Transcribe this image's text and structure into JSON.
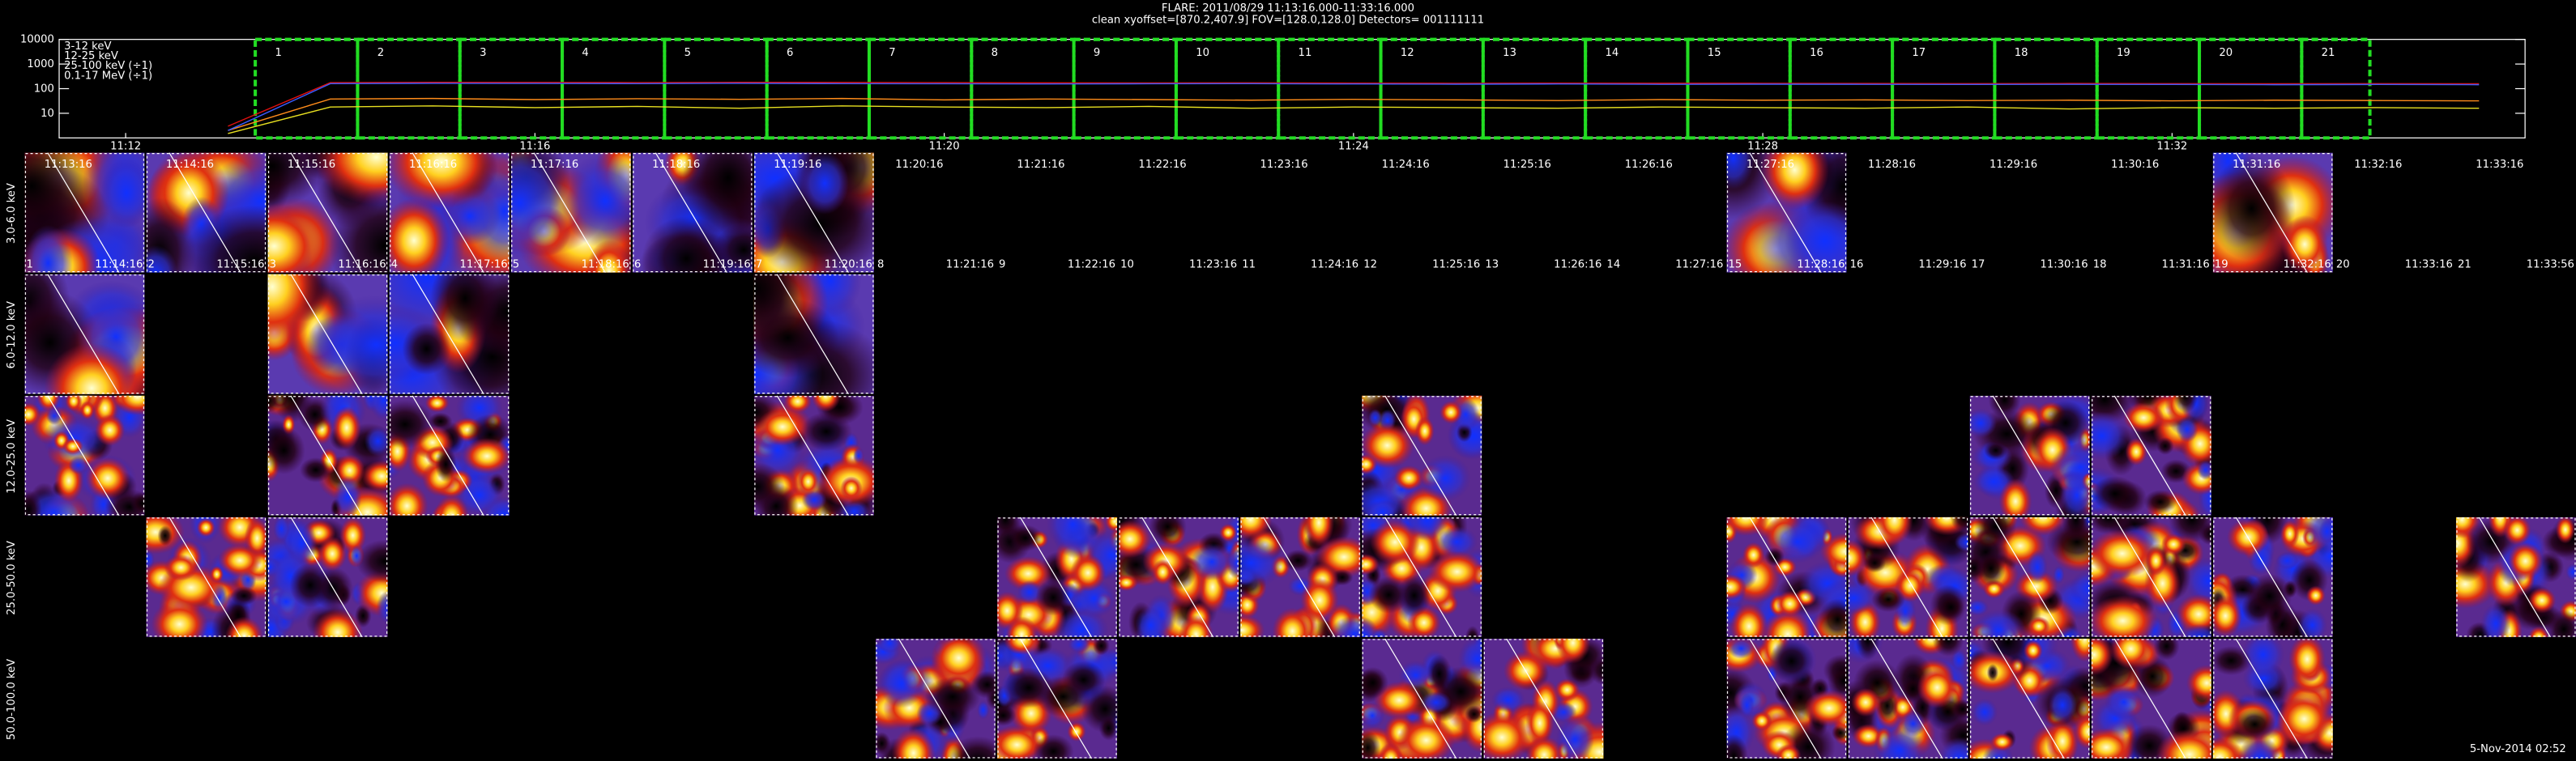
{
  "chart_data": {
    "type": "line",
    "title": "FLARE: 2011/08/29 11:13:16.000-11:33:16.000",
    "subtitle": "clean    xyoffset=[870.2,407.9]    FOV=[128.0,128.0]    Detectors= 001111111",
    "log_y": true,
    "legend": "top-left",
    "xlim": [
      "11:11:21",
      "11:35:27"
    ],
    "xticks": [
      "11:12",
      "11:16",
      "11:20",
      "11:24",
      "11:28",
      "11:32"
    ],
    "ylim": [
      1,
      10000
    ],
    "yticks": [
      10,
      100,
      1000,
      10000
    ],
    "x": [
      "11:13",
      "11:14",
      "11:15",
      "11:16",
      "11:17",
      "11:18",
      "11:19",
      "11:20",
      "11:21",
      "11:22",
      "11:23",
      "11:24",
      "11:25",
      "11:26",
      "11:27",
      "11:28",
      "11:29",
      "11:30",
      "11:31",
      "11:32",
      "11:33",
      "11:34",
      "11:35"
    ],
    "series": [
      {
        "name": "3-12 keV",
        "color": "#e01010",
        "values": [
          3,
          175,
          180,
          178,
          176,
          180,
          178,
          175,
          172,
          170,
          172,
          168,
          165,
          168,
          166,
          165,
          162,
          160,
          162,
          160,
          158,
          160,
          158
        ]
      },
      {
        "name": "12-25 keV",
        "color": "#ff8c1a",
        "values": [
          2,
          38,
          40,
          36,
          39,
          37,
          40,
          35,
          38,
          36,
          34,
          37,
          35,
          33,
          36,
          34,
          35,
          33,
          34,
          32,
          34,
          33,
          32
        ]
      },
      {
        "name": "25-100 keV (÷1)",
        "color": "#e8e020",
        "values": [
          1.5,
          18,
          20,
          17,
          19,
          16,
          20,
          18,
          17,
          19,
          16,
          18,
          17,
          16,
          18,
          17,
          16,
          18,
          15,
          17,
          16,
          17,
          16
        ]
      },
      {
        "name": "0.1-17 MeV (÷1)",
        "color": "#3a5cff",
        "values": [
          2,
          160,
          165,
          163,
          160,
          165,
          160,
          158,
          155,
          158,
          160,
          155,
          152,
          155,
          150,
          152,
          150,
          148,
          150,
          148,
          145,
          148,
          145
        ]
      }
    ],
    "intervals": [
      {
        "number": "1",
        "start": "11:13:16",
        "end": "11:14:16"
      },
      {
        "number": "2",
        "start": "11:14:16",
        "end": "11:15:16"
      },
      {
        "number": "3",
        "start": "11:15:16",
        "end": "11:16:16"
      },
      {
        "number": "4",
        "start": "11:16:16",
        "end": "11:17:16"
      },
      {
        "number": "5",
        "start": "11:17:16",
        "end": "11:18:16"
      },
      {
        "number": "6",
        "start": "11:18:16",
        "end": "11:19:16"
      },
      {
        "number": "7",
        "start": "11:19:16",
        "end": "11:20:16"
      },
      {
        "number": "8",
        "start": "11:20:16",
        "end": "11:21:16"
      },
      {
        "number": "9",
        "start": "11:21:16",
        "end": "11:22:16"
      },
      {
        "number": "10",
        "start": "11:22:16",
        "end": "11:23:16"
      },
      {
        "number": "11",
        "start": "11:23:16",
        "end": "11:24:16"
      },
      {
        "number": "12",
        "start": "11:24:16",
        "end": "11:25:16"
      },
      {
        "number": "13",
        "start": "11:25:16",
        "end": "11:26:16"
      },
      {
        "number": "14",
        "start": "11:26:16",
        "end": "11:27:16"
      },
      {
        "number": "15",
        "start": "11:27:16",
        "end": "11:28:16"
      },
      {
        "number": "16",
        "start": "11:28:16",
        "end": "11:29:16"
      },
      {
        "number": "17",
        "start": "11:29:16",
        "end": "11:30:16"
      },
      {
        "number": "18",
        "start": "11:30:16",
        "end": "11:31:16"
      },
      {
        "number": "19",
        "start": "11:31:16",
        "end": "11:32:16"
      },
      {
        "number": "20",
        "start": "11:32:16",
        "end": "11:33:16"
      },
      {
        "number": "21",
        "start": "11:33:16",
        "end": "11:33:56"
      }
    ],
    "energy_bands": [
      {
        "label": "3.0-6.0 keV",
        "images": [
          "1",
          "2",
          "3",
          "4",
          "5",
          "6",
          "7",
          "15",
          "19"
        ]
      },
      {
        "label": "6.0-12.0 keV",
        "images": [
          "1",
          "3",
          "4",
          "7"
        ]
      },
      {
        "label": "12.0-25.0 keV",
        "images": [
          "1",
          "3",
          "4",
          "7",
          "12",
          "17",
          "18"
        ]
      },
      {
        "label": "25.0-50.0 keV",
        "images": [
          "2",
          "3",
          "9",
          "10",
          "11",
          "12",
          "15",
          "16",
          "17",
          "18",
          "19",
          "21"
        ]
      },
      {
        "label": "50.0-100.0 keV",
        "images": [
          "8",
          "9",
          "12",
          "13",
          "15",
          "16",
          "17",
          "18",
          "19"
        ]
      }
    ],
    "footer": "5-Nov-2014 02:52"
  }
}
